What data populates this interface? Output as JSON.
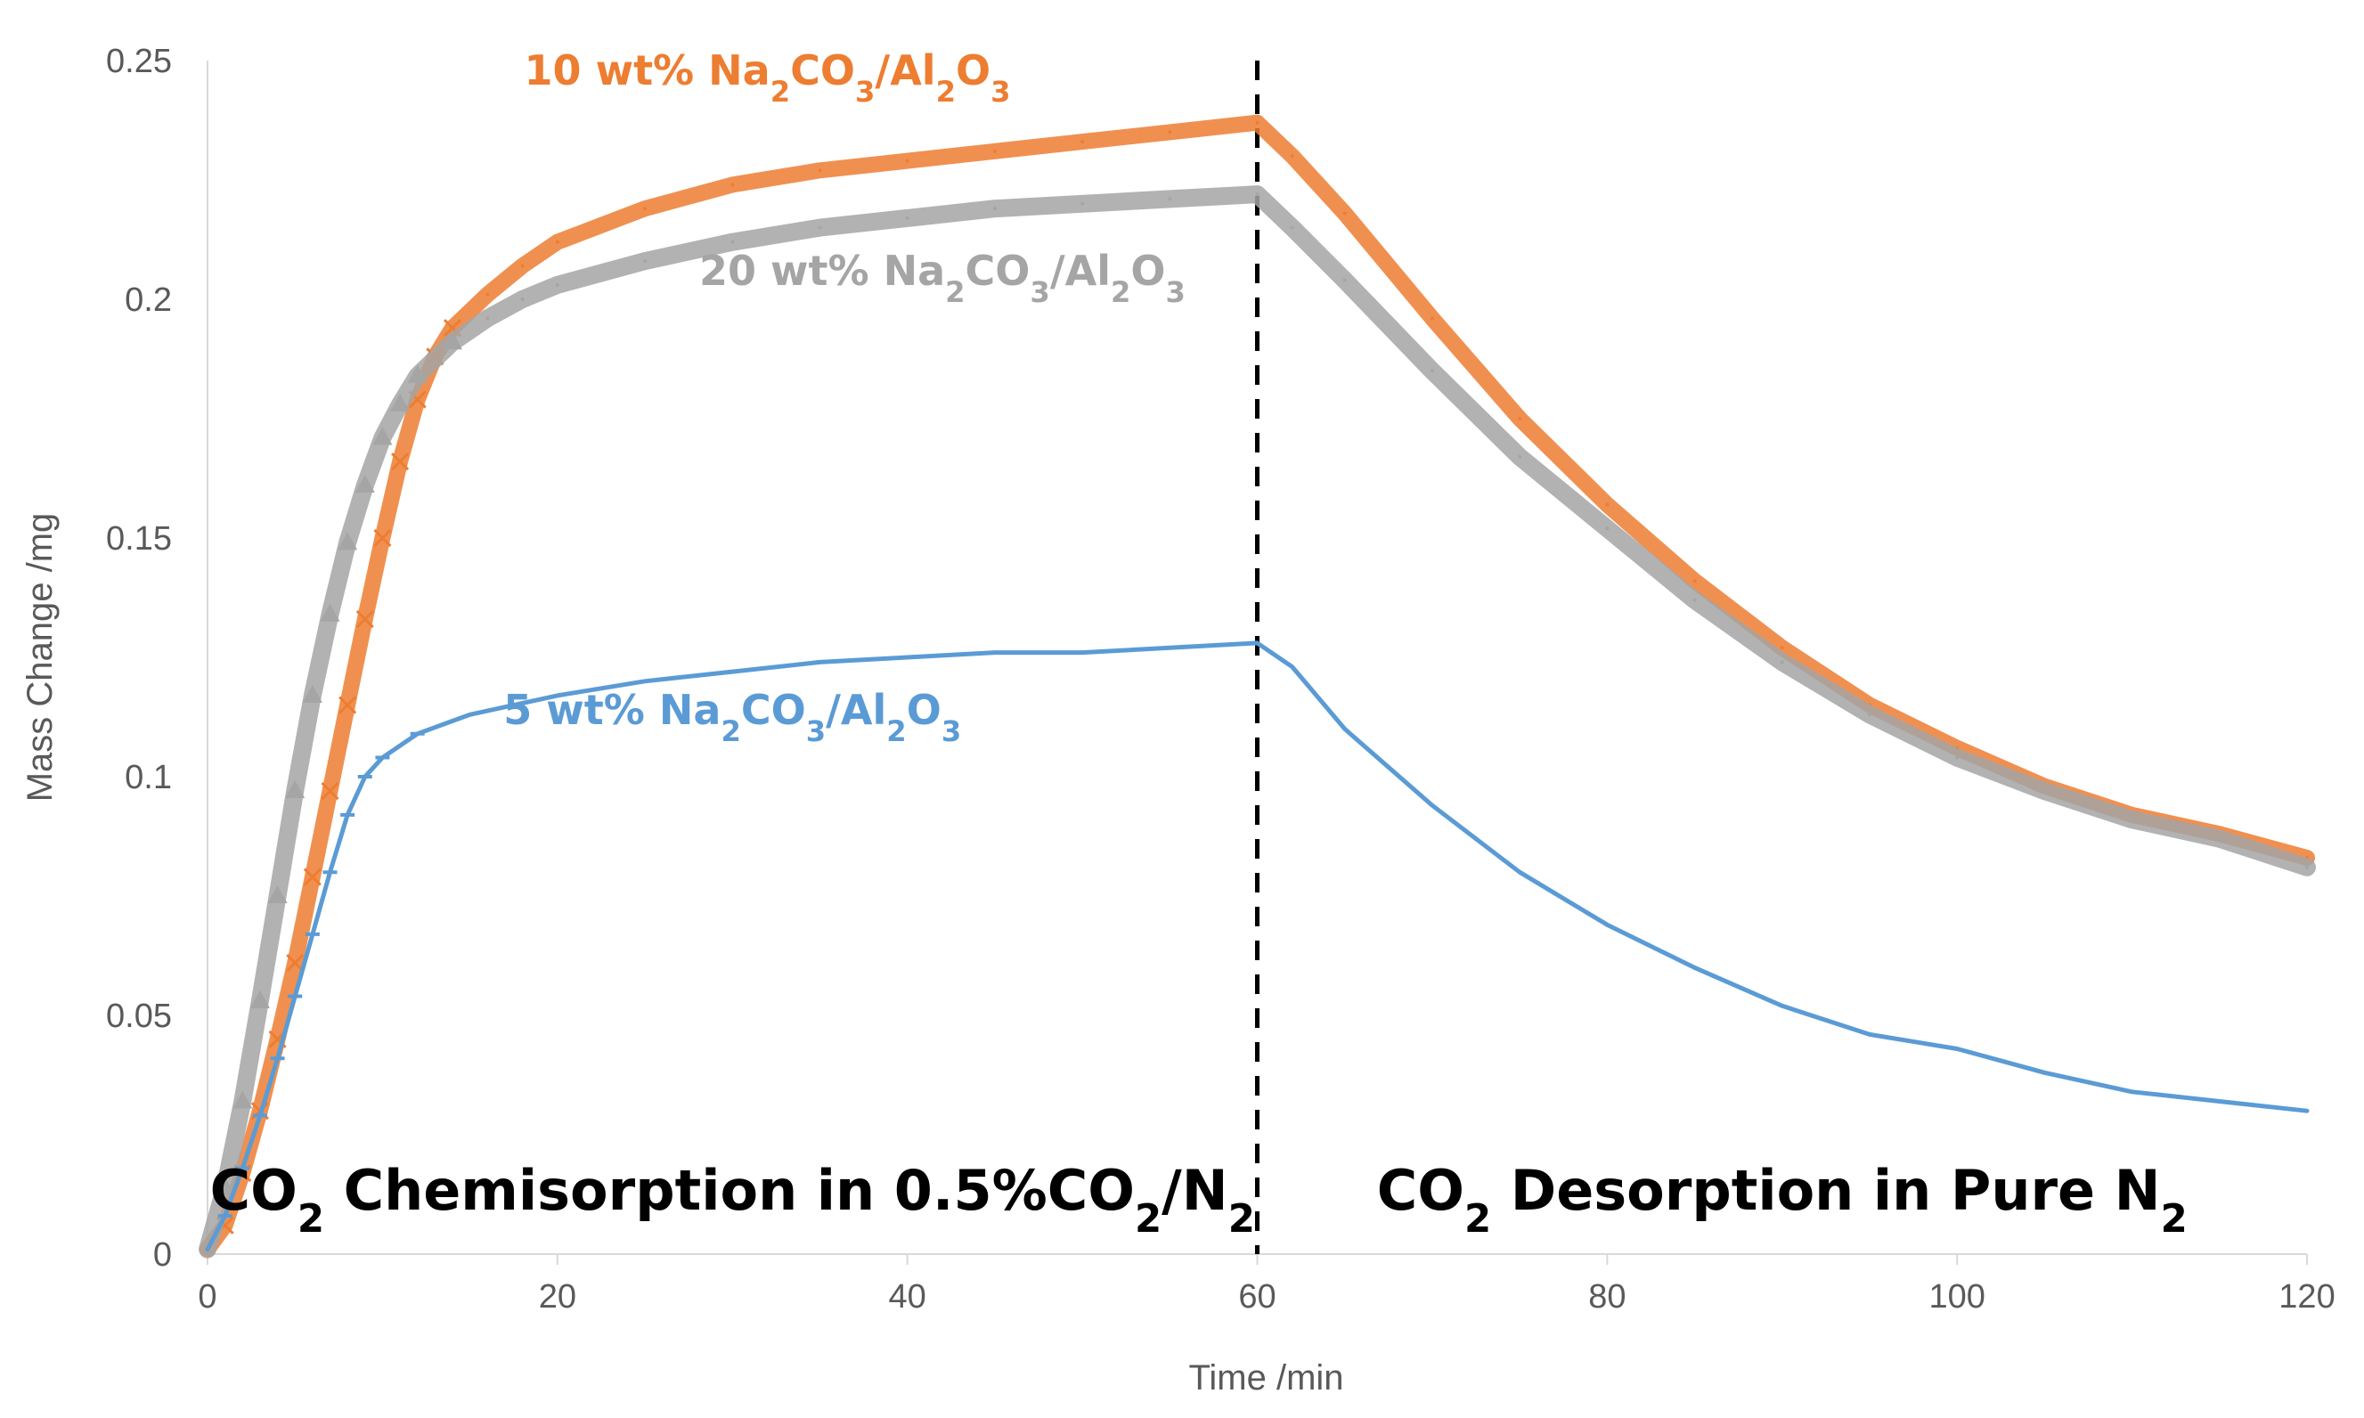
{
  "chart_data": {
    "type": "line",
    "title": "",
    "xlabel": "Time /min",
    "ylabel": "Mass Change /mg",
    "xlim": [
      0,
      120
    ],
    "ylim": [
      0,
      0.25
    ],
    "x_ticks": [
      0,
      20,
      40,
      60,
      80,
      100,
      120
    ],
    "y_ticks": [
      0,
      0.05,
      0.1,
      0.15,
      0.2,
      0.25
    ],
    "x_tick_labels": [
      "0",
      "20",
      "40",
      "60",
      "80",
      "100",
      "120"
    ],
    "y_tick_labels": [
      "0",
      "0.05",
      "0.1",
      "0.15",
      "0.2",
      "0.25"
    ],
    "grid": false,
    "legend": "none",
    "divider": {
      "x": 60,
      "style": "dashed",
      "color": "#000000"
    },
    "series": [
      {
        "name": "10 wt% Na2CO3/Al2O3",
        "label": {
          "text": "10 wt% Na",
          "parts": [
            [
              "10 wt% Na",
              ""
            ],
            [
              "2",
              "sub"
            ],
            [
              "CO",
              ""
            ],
            [
              "3",
              "sub"
            ],
            [
              "/Al",
              ""
            ],
            [
              "2",
              "sub"
            ],
            [
              "O",
              ""
            ],
            [
              "3",
              "sub"
            ]
          ],
          "at": [
            32,
            0.245
          ]
        },
        "color": "#ED7D31",
        "marker": "x",
        "points": [
          [
            0,
            0.001
          ],
          [
            1,
            0.006
          ],
          [
            2,
            0.017
          ],
          [
            3,
            0.03
          ],
          [
            4,
            0.045
          ],
          [
            5,
            0.061
          ],
          [
            6,
            0.079
          ],
          [
            7,
            0.097
          ],
          [
            8,
            0.115
          ],
          [
            9,
            0.133
          ],
          [
            10,
            0.15
          ],
          [
            11,
            0.166
          ],
          [
            12,
            0.179
          ],
          [
            13,
            0.188
          ],
          [
            14,
            0.194
          ],
          [
            16,
            0.201
          ],
          [
            18,
            0.207
          ],
          [
            20,
            0.212
          ],
          [
            25,
            0.219
          ],
          [
            30,
            0.224
          ],
          [
            35,
            0.227
          ],
          [
            40,
            0.229
          ],
          [
            45,
            0.231
          ],
          [
            50,
            0.233
          ],
          [
            55,
            0.235
          ],
          [
            60,
            0.237
          ],
          [
            62,
            0.23
          ],
          [
            65,
            0.218
          ],
          [
            70,
            0.196
          ],
          [
            75,
            0.175
          ],
          [
            80,
            0.157
          ],
          [
            85,
            0.141
          ],
          [
            90,
            0.127
          ],
          [
            95,
            0.115
          ],
          [
            100,
            0.106
          ],
          [
            105,
            0.098
          ],
          [
            110,
            0.092
          ],
          [
            115,
            0.088
          ],
          [
            120,
            0.083
          ]
        ]
      },
      {
        "name": "20 wt% Na2CO3/Al2O3",
        "label": {
          "text": "20 wt% Na",
          "parts": [
            [
              "20 wt% Na",
              ""
            ],
            [
              "2",
              "sub"
            ],
            [
              "CO",
              ""
            ],
            [
              "3",
              "sub"
            ],
            [
              "/Al",
              ""
            ],
            [
              "2",
              "sub"
            ],
            [
              "O",
              ""
            ],
            [
              "3",
              "sub"
            ]
          ],
          "at": [
            42,
            0.203
          ]
        },
        "color": "#A5A5A5",
        "marker": "triangle",
        "points": [
          [
            0,
            0.001
          ],
          [
            1,
            0.014
          ],
          [
            2,
            0.032
          ],
          [
            3,
            0.053
          ],
          [
            4,
            0.075
          ],
          [
            5,
            0.097
          ],
          [
            6,
            0.117
          ],
          [
            7,
            0.134
          ],
          [
            8,
            0.149
          ],
          [
            9,
            0.161
          ],
          [
            10,
            0.171
          ],
          [
            11,
            0.178
          ],
          [
            12,
            0.184
          ],
          [
            14,
            0.191
          ],
          [
            16,
            0.196
          ],
          [
            18,
            0.2
          ],
          [
            20,
            0.203
          ],
          [
            25,
            0.208
          ],
          [
            30,
            0.212
          ],
          [
            35,
            0.215
          ],
          [
            40,
            0.217
          ],
          [
            45,
            0.219
          ],
          [
            50,
            0.22
          ],
          [
            55,
            0.221
          ],
          [
            60,
            0.222
          ],
          [
            62,
            0.215
          ],
          [
            65,
            0.204
          ],
          [
            70,
            0.185
          ],
          [
            75,
            0.167
          ],
          [
            80,
            0.152
          ],
          [
            85,
            0.137
          ],
          [
            90,
            0.124
          ],
          [
            95,
            0.113
          ],
          [
            100,
            0.104
          ],
          [
            105,
            0.097
          ],
          [
            110,
            0.091
          ],
          [
            115,
            0.087
          ],
          [
            120,
            0.081
          ]
        ]
      },
      {
        "name": "5 wt% Na2CO3/Al2O3",
        "label": {
          "text": "5 wt% Na",
          "parts": [
            [
              "5 wt% Na",
              ""
            ],
            [
              "2",
              "sub"
            ],
            [
              "CO",
              ""
            ],
            [
              "3",
              "sub"
            ],
            [
              "/Al",
              ""
            ],
            [
              "2",
              "sub"
            ],
            [
              "O",
              ""
            ],
            [
              "3",
              "sub"
            ]
          ],
          "at": [
            30,
            0.111
          ]
        },
        "color": "#5B9BD5",
        "marker": "dash",
        "points": [
          [
            0,
            0.001
          ],
          [
            1,
            0.008
          ],
          [
            2,
            0.018
          ],
          [
            3,
            0.029
          ],
          [
            4,
            0.041
          ],
          [
            5,
            0.054
          ],
          [
            6,
            0.067
          ],
          [
            7,
            0.08
          ],
          [
            8,
            0.092
          ],
          [
            9,
            0.1
          ],
          [
            10,
            0.104
          ],
          [
            12,
            0.109
          ],
          [
            15,
            0.113
          ],
          [
            20,
            0.117
          ],
          [
            25,
            0.12
          ],
          [
            30,
            0.122
          ],
          [
            35,
            0.124
          ],
          [
            40,
            0.125
          ],
          [
            45,
            0.126
          ],
          [
            50,
            0.126
          ],
          [
            55,
            0.127
          ],
          [
            60,
            0.128
          ],
          [
            62,
            0.123
          ],
          [
            65,
            0.11
          ],
          [
            70,
            0.094
          ],
          [
            75,
            0.08
          ],
          [
            80,
            0.069
          ],
          [
            85,
            0.06
          ],
          [
            90,
            0.052
          ],
          [
            95,
            0.046
          ],
          [
            100,
            0.043
          ],
          [
            105,
            0.038
          ],
          [
            110,
            0.034
          ],
          [
            115,
            0.032
          ],
          [
            120,
            0.03
          ]
        ]
      }
    ],
    "annotations": [
      {
        "id": "chemisorption",
        "parts": [
          [
            "CO",
            ""
          ],
          [
            "2",
            "sub"
          ],
          [
            " Chemisorption in 0.5%CO",
            ""
          ],
          [
            "2",
            "sub"
          ],
          [
            "/N",
            ""
          ],
          [
            "2",
            "sub"
          ]
        ],
        "at": [
          30,
          0.006
        ]
      },
      {
        "id": "desorption",
        "parts": [
          [
            "CO",
            ""
          ],
          [
            "2",
            "sub"
          ],
          [
            " Desorption in Pure N",
            ""
          ],
          [
            "2",
            "sub"
          ]
        ],
        "at": [
          90,
          0.006
        ]
      }
    ]
  }
}
